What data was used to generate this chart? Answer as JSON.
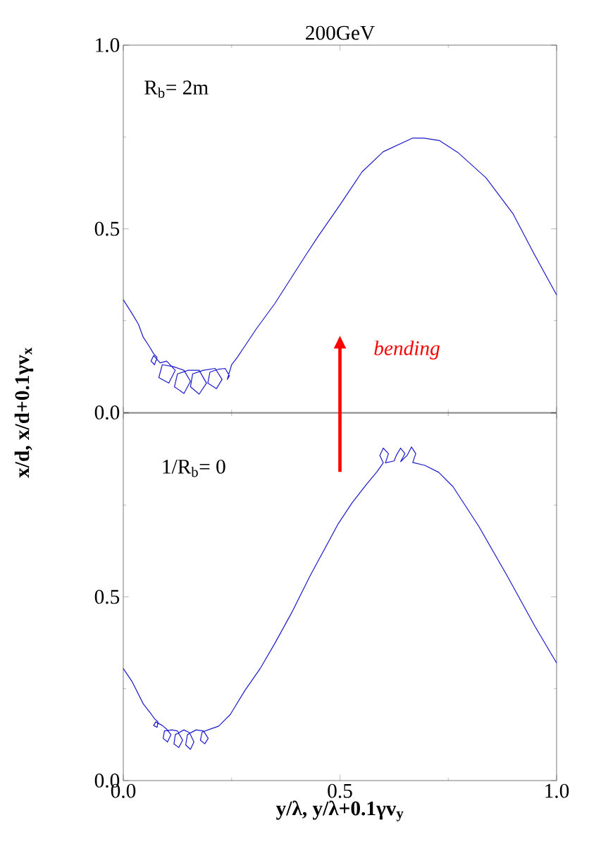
{
  "chart_data": [
    {
      "type": "line",
      "title": "200GeV",
      "ylabel": "x/d, x/d+0.1γv$_{x}$",
      "annotations": [
        "R$_{b}$= 2m",
        "bending"
      ],
      "xlim": [
        0,
        1
      ],
      "ylim": [
        0,
        1
      ],
      "xticks": [
        0,
        0.5,
        1
      ],
      "yticks": [
        {
          "value": 0,
          "label": "0.0"
        },
        {
          "value": 0.5,
          "label": "0.5"
        },
        {
          "value": 1,
          "label": "1.0"
        }
      ],
      "tick_labels": "y",
      "marker": "none",
      "line_style": "solid",
      "series": [
        {
          "color": "#1a1acc",
          "x": [
            0,
            0.02,
            0.035,
            0.046,
            0.06,
            0.07,
            0.078,
            0.072,
            0.064,
            0.07,
            0.085,
            0.1,
            0.12,
            0.105,
            0.082,
            0.09,
            0.115,
            0.14,
            0.155,
            0.14,
            0.118,
            0.125,
            0.15,
            0.175,
            0.192,
            0.175,
            0.155,
            0.16,
            0.185,
            0.212,
            0.228,
            0.215,
            0.195,
            0.2,
            0.22,
            0.235,
            0.245,
            0.24,
            0.25,
            0.263,
            0.28,
            0.306,
            0.35,
            0.421,
            0.45,
            0.5,
            0.551,
            0.6,
            0.668,
            0.694,
            0.73,
            0.772,
            0.837,
            0.9,
            0.948,
            1.0
          ],
          "values": [
            0.307,
            0.27,
            0.24,
            0.205,
            0.18,
            0.16,
            0.15,
            0.13,
            0.14,
            0.155,
            0.135,
            0.14,
            0.115,
            0.08,
            0.095,
            0.13,
            0.125,
            0.115,
            0.085,
            0.052,
            0.07,
            0.105,
            0.115,
            0.115,
            0.08,
            0.05,
            0.07,
            0.105,
            0.115,
            0.12,
            0.09,
            0.065,
            0.08,
            0.11,
            0.118,
            0.12,
            0.1,
            0.09,
            0.13,
            0.15,
            0.18,
            0.226,
            0.297,
            0.428,
            0.48,
            0.565,
            0.655,
            0.71,
            0.747,
            0.747,
            0.74,
            0.708,
            0.639,
            0.54,
            0.432,
            0.32
          ]
        }
      ]
    },
    {
      "type": "line",
      "xlabel": "y/λ, y/λ+0.1γv$_{y}$",
      "annotations": [
        "1/R$_{b}$= 0"
      ],
      "xlim": [
        0,
        1
      ],
      "ylim": [
        0,
        1
      ],
      "xticks": [
        {
          "value": 0,
          "label": "0.0"
        },
        {
          "value": 0.5,
          "label": "0.5"
        },
        {
          "value": 1,
          "label": "1.0"
        }
      ],
      "yticks": [
        {
          "value": 0,
          "label": "0.0"
        },
        {
          "value": 0.5,
          "label": "0.5"
        },
        {
          "value": 1,
          "label": null
        }
      ],
      "marker": "none",
      "line_style": "solid",
      "series": [
        {
          "color": "#1a1acc",
          "x": [
            0,
            0.02,
            0.046,
            0.065,
            0.073,
            0.08,
            0.078,
            0.07,
            0.075,
            0.09,
            0.1,
            0.11,
            0.102,
            0.092,
            0.095,
            0.112,
            0.125,
            0.137,
            0.128,
            0.117,
            0.12,
            0.14,
            0.153,
            0.163,
            0.155,
            0.144,
            0.148,
            0.168,
            0.185,
            0.196,
            0.188,
            0.178,
            0.182,
            0.2,
            0.22,
            0.247,
            0.28,
            0.317,
            0.35,
            0.39,
            0.431,
            0.496,
            0.528,
            0.561,
            0.585,
            0.6,
            0.592,
            0.6,
            0.612,
            0.605,
            0.625,
            0.63,
            0.64,
            0.65,
            0.64,
            0.655,
            0.665,
            0.675,
            0.668,
            0.696,
            0.728,
            0.761,
            0.789,
            0.821,
            0.886,
            0.95,
            1.0
          ],
          "values": [
            0.305,
            0.27,
            0.209,
            0.18,
            0.167,
            0.16,
            0.145,
            0.15,
            0.16,
            0.15,
            0.14,
            0.125,
            0.105,
            0.115,
            0.135,
            0.138,
            0.135,
            0.11,
            0.09,
            0.1,
            0.125,
            0.138,
            0.13,
            0.105,
            0.085,
            0.097,
            0.125,
            0.138,
            0.135,
            0.115,
            0.1,
            0.11,
            0.132,
            0.14,
            0.148,
            0.18,
            0.244,
            0.307,
            0.374,
            0.46,
            0.557,
            0.699,
            0.756,
            0.806,
            0.84,
            0.865,
            0.885,
            0.905,
            0.89,
            0.865,
            0.87,
            0.885,
            0.905,
            0.89,
            0.868,
            0.885,
            0.908,
            0.89,
            0.866,
            0.858,
            0.839,
            0.8,
            0.749,
            0.691,
            0.557,
            0.42,
            0.32
          ]
        }
      ]
    }
  ]
}
